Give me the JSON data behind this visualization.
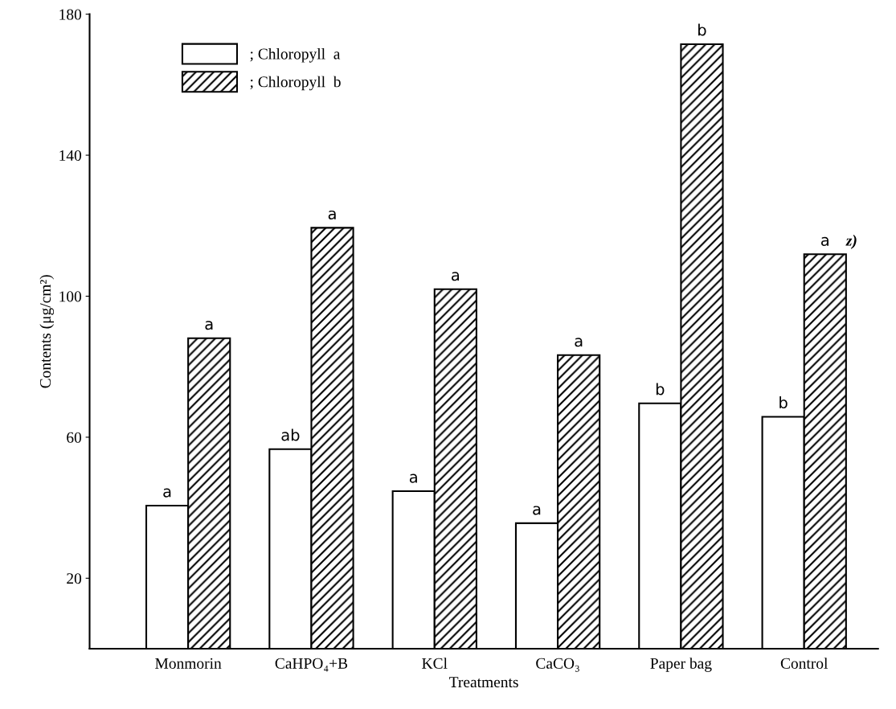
{
  "chart_data": {
    "type": "bar",
    "xlabel": "Treatments",
    "ylabel": "Contents (μg/cm²)",
    "categories": [
      "Monmorin",
      "CaHPO₄+B",
      "KCl",
      "CaCO₃",
      "Paper bag",
      "Control"
    ],
    "series": [
      {
        "name": "; Chloropyll  a",
        "color": "#ffffff",
        "values": [
          40.6,
          56.6,
          44.7,
          35.6,
          69.6,
          65.8
        ]
      },
      {
        "name": "; Chloropyll  b",
        "color": "#000000",
        "values": [
          88.1,
          119.4,
          102,
          83.3,
          171.5,
          111.9
        ]
      }
    ],
    "ylim": [
      0,
      180
    ],
    "yticks": [
      20,
      60,
      100,
      140,
      180
    ],
    "grid": false,
    "legend": "top left",
    "annotations": [
      {
        "text": "a",
        "x": "Monmorin",
        "y": 40.6
      },
      {
        "text": "a",
        "x": "Monmorin",
        "y": 88.1
      },
      {
        "text": "ab",
        "x": "CaHPO₄+B",
        "y": 56.6
      },
      {
        "text": "a",
        "x": "CaHPO₄+B",
        "y": 119.4
      },
      {
        "text": "a",
        "x": "KCl",
        "y": 44.7
      },
      {
        "text": "a",
        "x": "KCl",
        "y": 102
      },
      {
        "text": "a",
        "x": "CaCO₃",
        "y": 35.6
      },
      {
        "text": "a",
        "x": "CaCO₃",
        "y": 83.3
      },
      {
        "text": "b",
        "x": "Paper bag",
        "y": 69.6
      },
      {
        "text": "b",
        "x": "Paper bag",
        "y": 171.5
      },
      {
        "text": "b",
        "x": "Control",
        "y": 65.8
      },
      {
        "text": "a",
        "x": "Control",
        "y": 111.9
      },
      "z)"
    ]
  }
}
